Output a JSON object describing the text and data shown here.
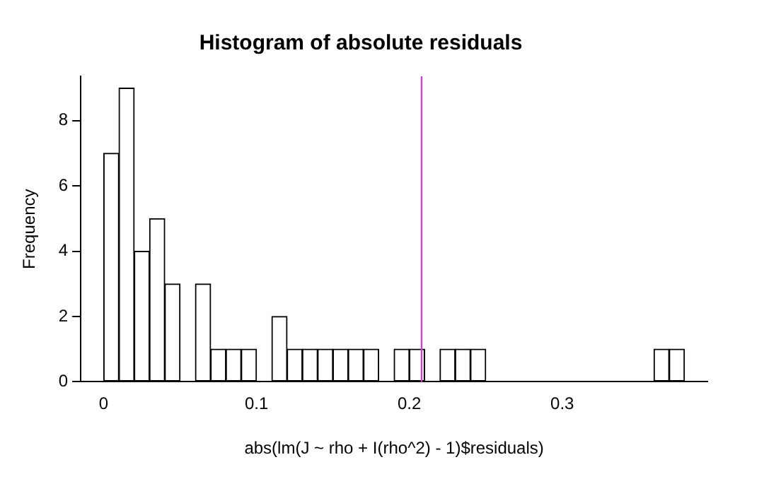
{
  "chart_data": {
    "type": "histogram",
    "title": "Histogram of absolute residuals",
    "xlabel": "abs(lm(J ~ rho + I(rho^2) - 1)$residuals)",
    "ylabel": "Frequency",
    "bins": [
      0,
      0.01,
      0.02,
      0.03,
      0.04,
      0.05,
      0.06,
      0.07,
      0.08,
      0.09,
      0.1,
      0.11,
      0.12,
      0.13,
      0.14,
      0.15,
      0.16,
      0.17,
      0.18,
      0.19,
      0.2,
      0.21,
      0.22,
      0.23,
      0.24,
      0.25,
      0.26,
      0.27,
      0.28,
      0.29,
      0.3,
      0.31,
      0.32,
      0.33,
      0.34,
      0.35,
      0.36,
      0.37,
      0.38
    ],
    "values": [
      7,
      9,
      4,
      5,
      3,
      0,
      3,
      1,
      1,
      1,
      0,
      2,
      1,
      1,
      1,
      1,
      1,
      1,
      0,
      1,
      1,
      0,
      1,
      1,
      1,
      0,
      0,
      0,
      0,
      0,
      0,
      0,
      0,
      0,
      0,
      0,
      1,
      1
    ],
    "color": "#ffffff",
    "xlim": [
      -0.015,
      0.395
    ],
    "xticks": [
      0,
      0.1,
      0.2,
      0.3
    ],
    "ylim": [
      0,
      9.36
    ],
    "yticks": [
      0,
      2,
      4,
      6,
      8
    ],
    "ref_lines": [
      {
        "axis": "x",
        "value": 0.208,
        "color": "#cc44cc"
      }
    ],
    "grid": false,
    "legend": false
  }
}
